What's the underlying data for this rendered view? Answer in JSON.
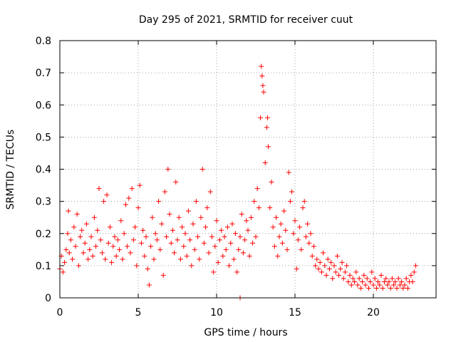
{
  "chart_data": {
    "type": "scatter",
    "title": "Day 295 of 2021, SRMTID for receiver cuut",
    "xlabel": "GPS time / hours",
    "ylabel": "SRMTID / TECUs",
    "xlim": [
      0,
      24
    ],
    "ylim": [
      0,
      0.8
    ],
    "x_ticks": [
      0,
      5,
      10,
      15,
      20
    ],
    "x_tick_labels": [
      "0",
      "5",
      "10",
      "15",
      "20"
    ],
    "y_ticks": [
      0,
      0.1,
      0.2,
      0.3,
      0.4,
      0.5,
      0.6,
      0.7,
      0.8
    ],
    "y_tick_labels": [
      "0",
      "0.1",
      "0.2",
      "0.3",
      "0.4",
      "0.5",
      "0.6",
      "0.7",
      "0.8"
    ],
    "grid": true,
    "marker": "+",
    "color": "#ff0000",
    "series": [
      {
        "name": "SRMTID",
        "points": [
          [
            0.0,
            0.09
          ],
          [
            0.1,
            0.13
          ],
          [
            0.2,
            0.08
          ],
          [
            0.3,
            0.11
          ],
          [
            0.4,
            0.15
          ],
          [
            0.5,
            0.2
          ],
          [
            0.55,
            0.27
          ],
          [
            0.6,
            0.14
          ],
          [
            0.7,
            0.18
          ],
          [
            0.8,
            0.12
          ],
          [
            0.9,
            0.22
          ],
          [
            1.0,
            0.16
          ],
          [
            1.1,
            0.26
          ],
          [
            1.2,
            0.1
          ],
          [
            1.3,
            0.19
          ],
          [
            1.4,
            0.21
          ],
          [
            1.5,
            0.14
          ],
          [
            1.6,
            0.17
          ],
          [
            1.7,
            0.23
          ],
          [
            1.8,
            0.12
          ],
          [
            1.9,
            0.15
          ],
          [
            2.0,
            0.19
          ],
          [
            2.1,
            0.13
          ],
          [
            2.2,
            0.25
          ],
          [
            2.3,
            0.16
          ],
          [
            2.4,
            0.21
          ],
          [
            2.5,
            0.34
          ],
          [
            2.6,
            0.18
          ],
          [
            2.7,
            0.14
          ],
          [
            2.8,
            0.3
          ],
          [
            2.9,
            0.12
          ],
          [
            3.0,
            0.32
          ],
          [
            3.1,
            0.17
          ],
          [
            3.2,
            0.22
          ],
          [
            3.3,
            0.11
          ],
          [
            3.4,
            0.16
          ],
          [
            3.5,
            0.19
          ],
          [
            3.6,
            0.13
          ],
          [
            3.7,
            0.18
          ],
          [
            3.8,
            0.15
          ],
          [
            3.9,
            0.24
          ],
          [
            4.0,
            0.12
          ],
          [
            4.1,
            0.2
          ],
          [
            4.2,
            0.29
          ],
          [
            4.3,
            0.16
          ],
          [
            4.4,
            0.31
          ],
          [
            4.5,
            0.14
          ],
          [
            4.6,
            0.34
          ],
          [
            4.7,
            0.18
          ],
          [
            4.8,
            0.22
          ],
          [
            4.9,
            0.1
          ],
          [
            5.0,
            0.28
          ],
          [
            5.1,
            0.35
          ],
          [
            5.2,
            0.17
          ],
          [
            5.3,
            0.21
          ],
          [
            5.4,
            0.13
          ],
          [
            5.5,
            0.19
          ],
          [
            5.6,
            0.09
          ],
          [
            5.7,
            0.04
          ],
          [
            5.8,
            0.16
          ],
          [
            5.9,
            0.25
          ],
          [
            6.0,
            0.12
          ],
          [
            6.1,
            0.2
          ],
          [
            6.2,
            0.18
          ],
          [
            6.3,
            0.3
          ],
          [
            6.4,
            0.15
          ],
          [
            6.5,
            0.23
          ],
          [
            6.6,
            0.07
          ],
          [
            6.7,
            0.33
          ],
          [
            6.8,
            0.19
          ],
          [
            6.9,
            0.4
          ],
          [
            7.0,
            0.26
          ],
          [
            7.1,
            0.17
          ],
          [
            7.2,
            0.21
          ],
          [
            7.3,
            0.14
          ],
          [
            7.4,
            0.36
          ],
          [
            7.5,
            0.18
          ],
          [
            7.6,
            0.25
          ],
          [
            7.7,
            0.12
          ],
          [
            7.8,
            0.22
          ],
          [
            7.9,
            0.16
          ],
          [
            8.0,
            0.2
          ],
          [
            8.1,
            0.13
          ],
          [
            8.2,
            0.27
          ],
          [
            8.3,
            0.18
          ],
          [
            8.4,
            0.1
          ],
          [
            8.5,
            0.23
          ],
          [
            8.6,
            0.15
          ],
          [
            8.7,
            0.3
          ],
          [
            8.8,
            0.19
          ],
          [
            8.9,
            0.12
          ],
          [
            9.0,
            0.25
          ],
          [
            9.1,
            0.4
          ],
          [
            9.2,
            0.17
          ],
          [
            9.3,
            0.22
          ],
          [
            9.4,
            0.28
          ],
          [
            9.5,
            0.14
          ],
          [
            9.6,
            0.33
          ],
          [
            9.7,
            0.19
          ],
          [
            9.8,
            0.08
          ],
          [
            9.9,
            0.16
          ],
          [
            10.0,
            0.24
          ],
          [
            10.1,
            0.11
          ],
          [
            10.2,
            0.18
          ],
          [
            10.3,
            0.21
          ],
          [
            10.4,
            0.13
          ],
          [
            10.5,
            0.19
          ],
          [
            10.6,
            0.15
          ],
          [
            10.7,
            0.22
          ],
          [
            10.8,
            0.1
          ],
          [
            10.9,
            0.17
          ],
          [
            11.0,
            0.23
          ],
          [
            11.1,
            0.12
          ],
          [
            11.2,
            0.2
          ],
          [
            11.3,
            0.08
          ],
          [
            11.4,
            0.15
          ],
          [
            11.5,
            0.19
          ],
          [
            11.6,
            0.26
          ],
          [
            11.7,
            0.14
          ],
          [
            11.8,
            0.18
          ],
          [
            11.9,
            0.24
          ],
          [
            12.0,
            0.21
          ],
          [
            12.1,
            0.13
          ],
          [
            12.2,
            0.25
          ],
          [
            12.3,
            0.17
          ],
          [
            12.4,
            0.3
          ],
          [
            12.5,
            0.19
          ],
          [
            12.6,
            0.34
          ],
          [
            12.7,
            0.28
          ],
          [
            12.8,
            0.56
          ],
          [
            12.85,
            0.72
          ],
          [
            12.9,
            0.69
          ],
          [
            12.95,
            0.66
          ],
          [
            13.0,
            0.64
          ],
          [
            13.1,
            0.42
          ],
          [
            13.2,
            0.53
          ],
          [
            13.25,
            0.56
          ],
          [
            13.3,
            0.47
          ],
          [
            13.4,
            0.28
          ],
          [
            13.5,
            0.36
          ],
          [
            13.6,
            0.22
          ],
          [
            13.7,
            0.16
          ],
          [
            13.8,
            0.25
          ],
          [
            13.9,
            0.13
          ],
          [
            14.0,
            0.19
          ],
          [
            14.1,
            0.23
          ],
          [
            14.2,
            0.17
          ],
          [
            14.3,
            0.27
          ],
          [
            14.4,
            0.21
          ],
          [
            14.5,
            0.15
          ],
          [
            14.6,
            0.39
          ],
          [
            14.7,
            0.3
          ],
          [
            14.8,
            0.33
          ],
          [
            14.9,
            0.2
          ],
          [
            15.0,
            0.24
          ],
          [
            15.1,
            0.09
          ],
          [
            15.2,
            0.18
          ],
          [
            15.3,
            0.22
          ],
          [
            15.4,
            0.15
          ],
          [
            15.5,
            0.28
          ],
          [
            15.6,
            0.3
          ],
          [
            15.7,
            0.19
          ],
          [
            15.8,
            0.23
          ],
          [
            15.9,
            0.17
          ],
          [
            16.0,
            0.2
          ],
          [
            16.1,
            0.13
          ],
          [
            16.2,
            0.16
          ],
          [
            16.3,
            0.1
          ],
          [
            16.4,
            0.12
          ],
          [
            16.5,
            0.09
          ],
          [
            16.6,
            0.11
          ],
          [
            16.7,
            0.08
          ],
          [
            16.8,
            0.14
          ],
          [
            16.9,
            0.1
          ],
          [
            17.0,
            0.07
          ],
          [
            17.1,
            0.12
          ],
          [
            17.2,
            0.09
          ],
          [
            17.3,
            0.11
          ],
          [
            17.4,
            0.06
          ],
          [
            17.5,
            0.1
          ],
          [
            17.6,
            0.08
          ],
          [
            17.7,
            0.13
          ],
          [
            17.8,
            0.07
          ],
          [
            17.9,
            0.09
          ],
          [
            18.0,
            0.11
          ],
          [
            18.1,
            0.06
          ],
          [
            18.2,
            0.08
          ],
          [
            18.3,
            0.1
          ],
          [
            18.4,
            0.05
          ],
          [
            18.5,
            0.07
          ],
          [
            18.6,
            0.04
          ],
          [
            18.7,
            0.06
          ],
          [
            18.8,
            0.05
          ],
          [
            18.9,
            0.08
          ],
          [
            19.0,
            0.04
          ],
          [
            19.1,
            0.06
          ],
          [
            19.2,
            0.03
          ],
          [
            19.3,
            0.05
          ],
          [
            19.4,
            0.07
          ],
          [
            19.5,
            0.04
          ],
          [
            19.6,
            0.06
          ],
          [
            19.7,
            0.03
          ],
          [
            19.8,
            0.05
          ],
          [
            19.9,
            0.08
          ],
          [
            20.0,
            0.04
          ],
          [
            20.1,
            0.06
          ],
          [
            20.2,
            0.03
          ],
          [
            20.3,
            0.05
          ],
          [
            20.4,
            0.04
          ],
          [
            20.5,
            0.07
          ],
          [
            20.6,
            0.03
          ],
          [
            20.7,
            0.05
          ],
          [
            20.8,
            0.06
          ],
          [
            20.9,
            0.04
          ],
          [
            21.0,
            0.05
          ],
          [
            21.1,
            0.03
          ],
          [
            21.2,
            0.06
          ],
          [
            21.3,
            0.04
          ],
          [
            21.4,
            0.05
          ],
          [
            21.5,
            0.03
          ],
          [
            21.6,
            0.06
          ],
          [
            21.7,
            0.04
          ],
          [
            21.8,
            0.05
          ],
          [
            21.9,
            0.03
          ],
          [
            22.0,
            0.04
          ],
          [
            22.1,
            0.06
          ],
          [
            22.2,
            0.03
          ],
          [
            22.3,
            0.05
          ],
          [
            22.4,
            0.07
          ],
          [
            22.5,
            0.05
          ],
          [
            22.6,
            0.08
          ],
          [
            22.7,
            0.1
          ],
          [
            11.5,
            0.0
          ]
        ]
      }
    ]
  }
}
